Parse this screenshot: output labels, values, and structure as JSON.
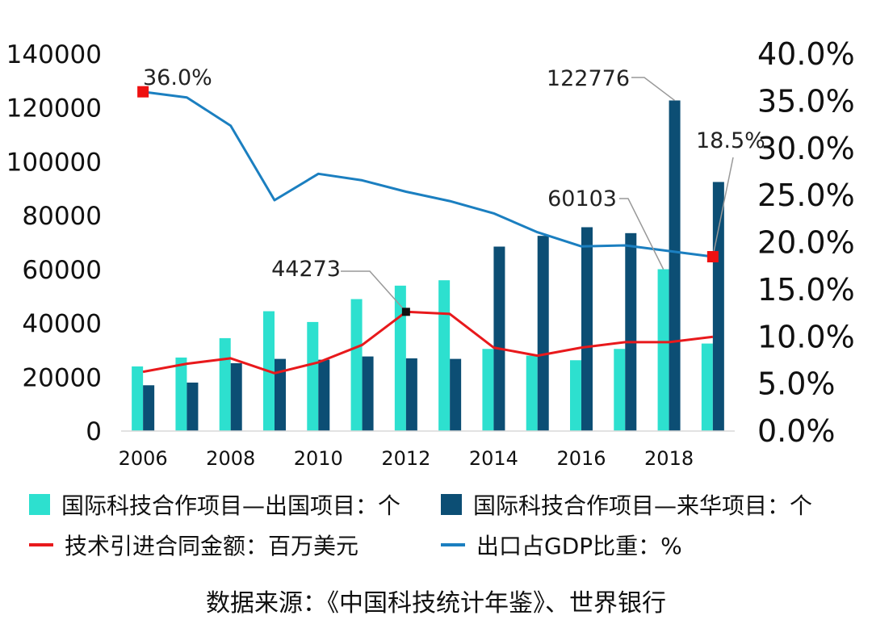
{
  "chart_data": {
    "type": "bar",
    "x": [
      2006,
      2007,
      2008,
      2009,
      2010,
      2011,
      2012,
      2013,
      2014,
      2015,
      2016,
      2017,
      2018,
      2019
    ],
    "x_tick_labels": [
      "2006",
      "2008",
      "2010",
      "2012",
      "2014",
      "2016",
      "2018"
    ],
    "left_axis": {
      "ylim": [
        0,
        140000
      ],
      "ticks": [
        "0",
        "20000",
        "40000",
        "60000",
        "80000",
        "100000",
        "120000",
        "140000"
      ]
    },
    "right_axis": {
      "ylim": [
        0,
        40
      ],
      "ticks": [
        "0.0%",
        "5.0%",
        "10.0%",
        "15.0%",
        "20.0%",
        "25.0%",
        "30.0%",
        "35.0%",
        "40.0%"
      ]
    },
    "series": [
      {
        "name": "国际科技合作项目—出国项目：个",
        "type": "bar",
        "axis": "left",
        "color": "#2de0cf",
        "values": [
          24000,
          27300,
          34500,
          44500,
          40500,
          49000,
          54000,
          56000,
          30500,
          28000,
          26300,
          30500,
          60103,
          32500
        ]
      },
      {
        "name": "国际科技合作项目—来华项目：个",
        "type": "bar",
        "axis": "left",
        "color": "#0c4e74",
        "values": [
          17000,
          18000,
          25200,
          26800,
          26500,
          27700,
          27000,
          26800,
          68500,
          72500,
          75700,
          73500,
          122776,
          92500
        ]
      },
      {
        "name": "技术引进合同金额：百万美元",
        "type": "line",
        "axis": "left",
        "color": "#e8191c",
        "values": [
          22000,
          25000,
          27000,
          21500,
          25500,
          32000,
          44273,
          43500,
          31000,
          28000,
          31000,
          33000,
          33000,
          35000
        ]
      },
      {
        "name": "出口占GDP比重：%",
        "type": "line",
        "axis": "right",
        "color": "#1b7fc0",
        "values": [
          36.0,
          35.4,
          32.4,
          24.5,
          27.3,
          26.6,
          25.4,
          24.4,
          23.1,
          21.1,
          19.6,
          19.7,
          19.1,
          18.5
        ]
      }
    ],
    "annotations": [
      {
        "text": "36.0%",
        "series": 3,
        "index": 0
      },
      {
        "text": "44273",
        "series": 2,
        "index": 6
      },
      {
        "text": "122776",
        "series": 1,
        "index": 12
      },
      {
        "text": "60103",
        "series": 0,
        "index": 12
      },
      {
        "text": "18.5%",
        "series": 3,
        "index": 13
      }
    ],
    "colors": {
      "annotation_marker": "#ee1111",
      "leader_line": "#999999"
    }
  },
  "source_note": "数据来源：《中国科技统计年鉴》、世界银行"
}
